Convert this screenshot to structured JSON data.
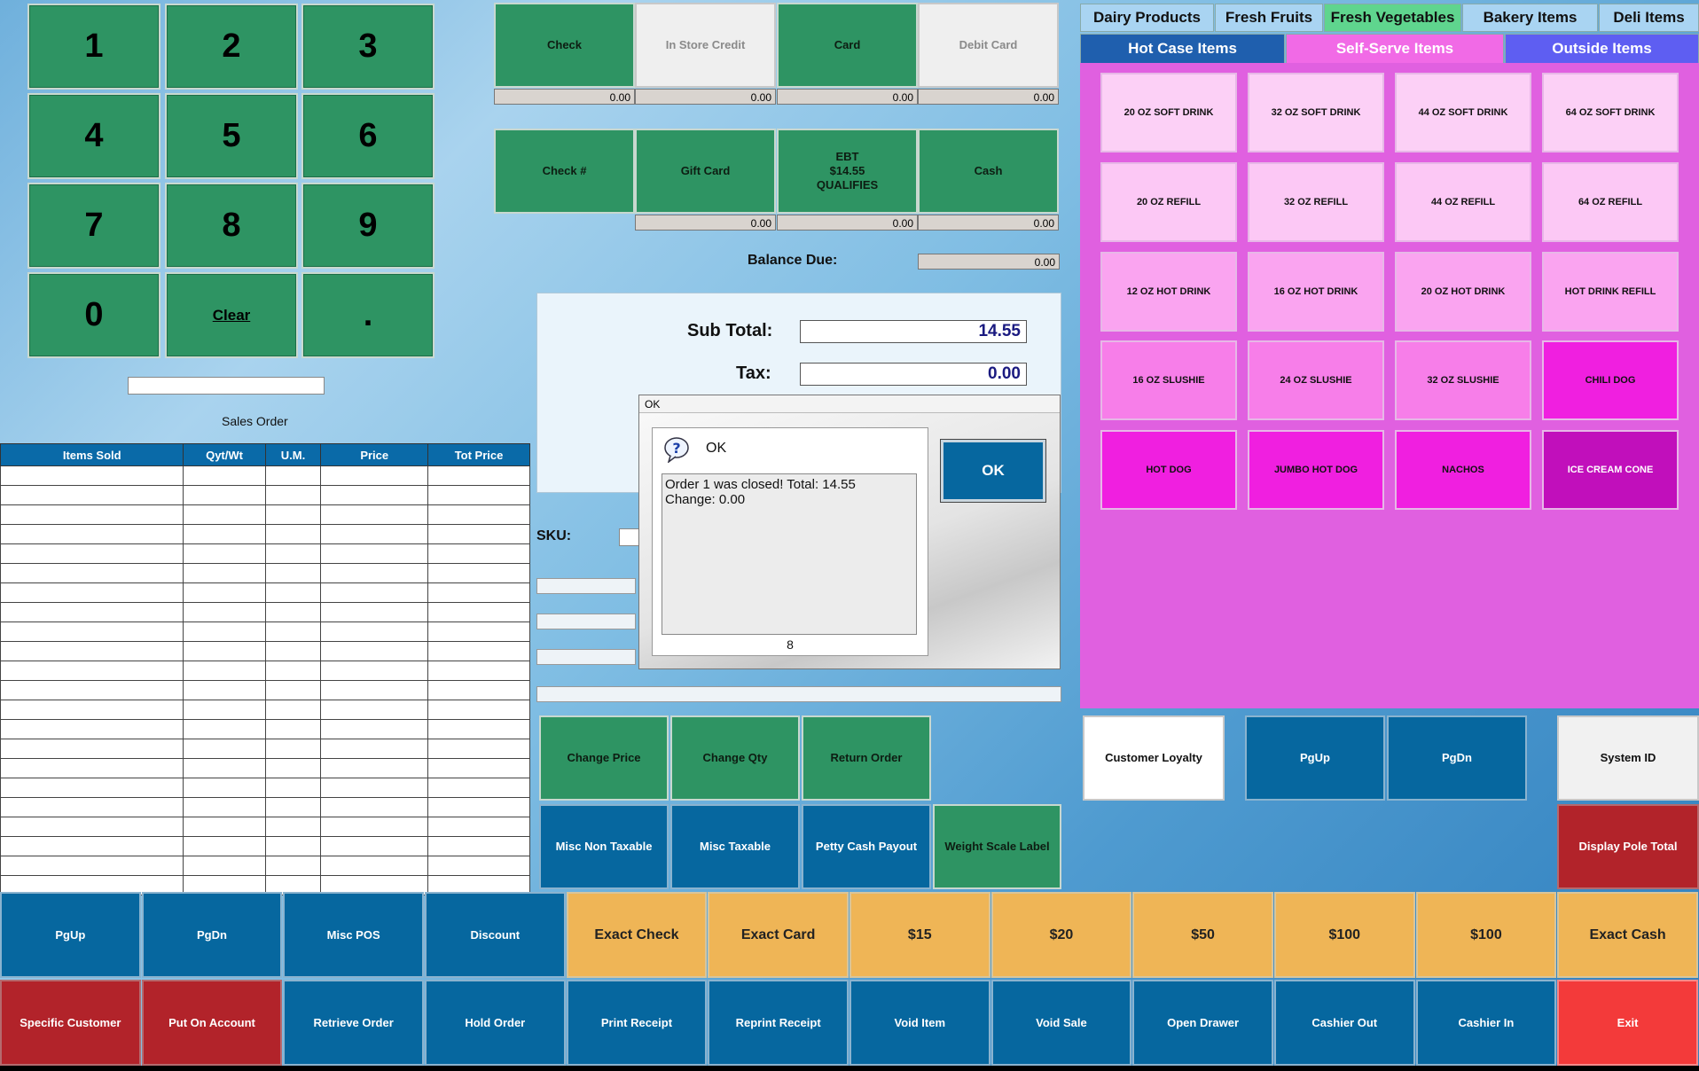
{
  "keypad": {
    "keys": [
      "1",
      "2",
      "3",
      "4",
      "5",
      "6",
      "7",
      "8",
      "9",
      "0",
      "Clear",
      "."
    ]
  },
  "sales_order": {
    "label": "Sales Order",
    "input_value": ""
  },
  "table": {
    "headers": [
      "Items Sold",
      "Qyt/Wt",
      "U.M.",
      "Price",
      "Tot Price"
    ]
  },
  "tenders": {
    "row1": [
      {
        "label": "Check",
        "amount": "0.00",
        "style": "green"
      },
      {
        "label": "In Store Credit",
        "amount": "0.00",
        "style": "gray"
      },
      {
        "label": "Card",
        "amount": "0.00",
        "style": "green"
      },
      {
        "label": "Debit Card",
        "amount": "0.00",
        "style": "gray"
      }
    ],
    "row2": [
      {
        "label": "Check #",
        "amount": "",
        "style": "green"
      },
      {
        "label": "Gift Card",
        "amount": "0.00",
        "style": "green"
      },
      {
        "label": "EBT\n$14.55\nQUALIFIES",
        "amount": "0.00",
        "style": "green"
      },
      {
        "label": "Cash",
        "amount": "0.00",
        "style": "green"
      }
    ]
  },
  "balance": {
    "label": "Balance Due:",
    "value": "0.00"
  },
  "totals": {
    "subtotal_label": "Sub Total:",
    "subtotal": "14.55",
    "tax_label": "Tax:",
    "tax": "0.00"
  },
  "sku": {
    "label": "SKU:",
    "value": ""
  },
  "dialog": {
    "window_title": "OK",
    "heading": "OK",
    "message": "Order 1 was closed!  Total: 14.55\nChange: 0.00",
    "footer": "8",
    "ok_label": "OK"
  },
  "actions_mid": [
    {
      "label": "Change Price",
      "style": "green"
    },
    {
      "label": "Change Qty",
      "style": "green"
    },
    {
      "label": "Return Order",
      "style": "green"
    },
    {
      "label": "Misc Non Taxable",
      "style": "blue"
    },
    {
      "label": "Misc Taxable",
      "style": "blue"
    },
    {
      "label": "Petty Cash Payout",
      "style": "blue"
    },
    {
      "label": "Weight Scale Label",
      "style": "green"
    }
  ],
  "categories_row1": [
    "Dairy Products",
    "Fresh Fruits",
    "Fresh Vegetables",
    "Bakery Items",
    "Deli Items"
  ],
  "categories_row2": [
    "Hot Case Items",
    "Self-Serve Items",
    "Outside Items"
  ],
  "items": [
    "20 OZ SOFT DRINK",
    "32 OZ SOFT DRINK",
    "44 OZ SOFT DRINK",
    "64 OZ SOFT DRINK",
    "20 OZ REFILL",
    "32 OZ REFILL",
    "44 OZ REFILL",
    "64 OZ REFILL",
    "12 OZ HOT DRINK",
    "16 OZ HOT DRINK",
    "20 OZ HOT DRINK",
    "HOT DRINK REFILL",
    "16 OZ SLUSHIE",
    "24 OZ SLUSHIE",
    "32 OZ SLUSHIE",
    "CHILI DOG",
    "HOT DOG",
    "JUMBO HOT DOG",
    "NACHOS",
    "ICE CREAM CONE"
  ],
  "item_colors": [
    "#fcd0f6",
    "#fcd0f6",
    "#fcd0f6",
    "#fcd0f6",
    "#fcc8f5",
    "#fcc8f5",
    "#fcc8f5",
    "#fcc8f5",
    "#faa4f0",
    "#faa4f0",
    "#faa4f0",
    "#faa4f0",
    "#f77ee9",
    "#f77ee9",
    "#f77ee9",
    "#f01fe0",
    "#f01fe0",
    "#f01fe0",
    "#f01fe0",
    "#c10fbb"
  ],
  "right_buttons": [
    {
      "label": "Customer Loyalty"
    },
    {
      "label": "PgUp"
    },
    {
      "label": "PgDn"
    },
    {
      "label": "System ID"
    },
    {
      "label": "Display Pole Total"
    }
  ],
  "bottom_row1": [
    {
      "label": "PgUp",
      "style": "blue"
    },
    {
      "label": "PgDn",
      "style": "blue"
    },
    {
      "label": "Misc POS",
      "style": "blue"
    },
    {
      "label": "Discount",
      "style": "blue"
    },
    {
      "label": "Exact Check",
      "style": "orange"
    },
    {
      "label": "Exact Card",
      "style": "orange"
    },
    {
      "label": "$15",
      "style": "orange"
    },
    {
      "label": "$20",
      "style": "orange"
    },
    {
      "label": "$50",
      "style": "orange"
    },
    {
      "label": "$100",
      "style": "orange"
    },
    {
      "label": "$100",
      "style": "orange"
    },
    {
      "label": "Exact Cash",
      "style": "orange"
    }
  ],
  "bottom_row2": [
    {
      "label": "Specific Customer",
      "style": "red"
    },
    {
      "label": "Put On Account",
      "style": "red"
    },
    {
      "label": "Retrieve Order",
      "style": "blue"
    },
    {
      "label": "Hold Order",
      "style": "blue"
    },
    {
      "label": "Print Receipt",
      "style": "blue"
    },
    {
      "label": "Reprint Receipt",
      "style": "blue"
    },
    {
      "label": "Void Item",
      "style": "blue"
    },
    {
      "label": "Void Sale",
      "style": "blue"
    },
    {
      "label": "Open Drawer",
      "style": "blue"
    },
    {
      "label": "Cashier Out",
      "style": "blue"
    },
    {
      "label": "Cashier In",
      "style": "blue"
    },
    {
      "label": "Exit",
      "style": "brightred"
    }
  ]
}
